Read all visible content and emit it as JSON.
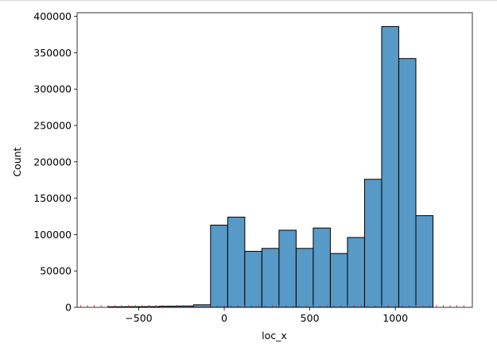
{
  "chart_data": {
    "type": "bar",
    "subtype": "histogram",
    "title": "",
    "xlabel": "loc_x",
    "ylabel": "Count",
    "xlim": [
      -860,
      1450
    ],
    "ylim": [
      0,
      405000
    ],
    "xticks": [
      -500,
      0,
      500,
      1000
    ],
    "xtick_labels": [
      "−500",
      "0",
      "500",
      "1000"
    ],
    "yticks": [
      0,
      50000,
      100000,
      150000,
      200000,
      250000,
      300000,
      350000,
      400000
    ],
    "ytick_labels": [
      "0",
      "50000",
      "100000",
      "150000",
      "200000",
      "250000",
      "300000",
      "350000",
      "400000"
    ],
    "bin_width": 100,
    "bins": [
      {
        "x0": -680,
        "x1": -580,
        "count": 800
      },
      {
        "x0": -580,
        "x1": -480,
        "count": 900
      },
      {
        "x0": -480,
        "x1": -380,
        "count": 1000
      },
      {
        "x0": -380,
        "x1": -280,
        "count": 1500
      },
      {
        "x0": -280,
        "x1": -180,
        "count": 1800
      },
      {
        "x0": -180,
        "x1": -80,
        "count": 3500
      },
      {
        "x0": -80,
        "x1": 20,
        "count": 113000
      },
      {
        "x0": 20,
        "x1": 120,
        "count": 124000
      },
      {
        "x0": 120,
        "x1": 220,
        "count": 77000
      },
      {
        "x0": 220,
        "x1": 320,
        "count": 81000
      },
      {
        "x0": 320,
        "x1": 420,
        "count": 106000
      },
      {
        "x0": 420,
        "x1": 520,
        "count": 81000
      },
      {
        "x0": 520,
        "x1": 620,
        "count": 109000
      },
      {
        "x0": 620,
        "x1": 720,
        "count": 74000
      },
      {
        "x0": 720,
        "x1": 820,
        "count": 96000
      },
      {
        "x0": 820,
        "x1": 920,
        "count": 176000
      },
      {
        "x0": 920,
        "x1": 1020,
        "count": 386000
      },
      {
        "x0": 1020,
        "x1": 1120,
        "count": 342000
      },
      {
        "x0": 1120,
        "x1": 1220,
        "count": 126000
      }
    ],
    "rug": true,
    "rug_color": "#d62728",
    "rug_x": [
      -840,
      -800,
      -760,
      -720,
      -680,
      -640,
      -600,
      -560,
      -520,
      -480,
      -440,
      -400,
      -360,
      -320,
      -280,
      -240,
      -200,
      -160,
      -120,
      -80,
      -40,
      0,
      40,
      80,
      120,
      160,
      200,
      240,
      280,
      320,
      360,
      400,
      440,
      480,
      520,
      560,
      600,
      640,
      680,
      720,
      760,
      800,
      840,
      880,
      920,
      960,
      1000,
      1040,
      1080,
      1120,
      1160,
      1200,
      1240,
      1280,
      1320,
      1360,
      1400
    ],
    "bar_color": "#5799c7",
    "edge_color": "#000000",
    "grid": false,
    "legend": "none"
  }
}
